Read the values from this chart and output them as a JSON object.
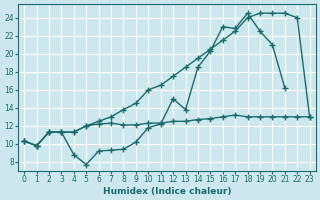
{
  "xlabel": "Humidex (Indice chaleur)",
  "xlim": [
    -0.5,
    23.5
  ],
  "ylim": [
    7.0,
    25.5
  ],
  "yticks": [
    8,
    10,
    12,
    14,
    16,
    18,
    20,
    22,
    24
  ],
  "xticks": [
    0,
    1,
    2,
    3,
    4,
    5,
    6,
    7,
    8,
    9,
    10,
    11,
    12,
    13,
    14,
    15,
    16,
    17,
    18,
    19,
    20,
    21,
    22,
    23
  ],
  "bg_color": "#cce8ee",
  "line_color": "#1a6b6b",
  "grid_color": "#ffffff",
  "line_wavy_x": [
    0,
    1,
    2,
    3,
    4,
    5,
    6,
    7,
    8,
    9,
    10,
    11,
    12,
    13,
    14,
    15,
    16,
    17,
    18,
    19,
    20,
    21
  ],
  "line_wavy_y": [
    10.3,
    9.8,
    11.3,
    11.3,
    8.8,
    7.7,
    9.2,
    9.3,
    9.4,
    10.2,
    11.8,
    12.2,
    15.0,
    13.8,
    18.5,
    20.3,
    23.0,
    22.8,
    24.5,
    22.5,
    21.0,
    16.2
  ],
  "line_flat_x": [
    0,
    1,
    2,
    3,
    4,
    5,
    6,
    7,
    8,
    9,
    10,
    11,
    12,
    13,
    14,
    15,
    16,
    17,
    18,
    19,
    20,
    21,
    22,
    23
  ],
  "line_flat_y": [
    10.3,
    9.8,
    11.3,
    11.3,
    11.3,
    12.0,
    12.2,
    12.3,
    12.1,
    12.1,
    12.3,
    12.3,
    12.5,
    12.5,
    12.7,
    12.8,
    13.0,
    13.2,
    13.0,
    13.0,
    13.0,
    13.0,
    13.0,
    13.0
  ],
  "line_upper_x": [
    0,
    1,
    2,
    3,
    4,
    5,
    6,
    7,
    8,
    9,
    10,
    11,
    12,
    13,
    14,
    15,
    16,
    17,
    18,
    19,
    20,
    21,
    22,
    23
  ],
  "line_upper_y": [
    10.3,
    9.8,
    11.3,
    11.3,
    11.3,
    12.0,
    12.5,
    13.0,
    13.8,
    14.5,
    16.0,
    16.5,
    17.5,
    18.5,
    19.5,
    20.5,
    21.5,
    22.5,
    24.0,
    24.5,
    24.5,
    24.5,
    24.0,
    13.0
  ]
}
